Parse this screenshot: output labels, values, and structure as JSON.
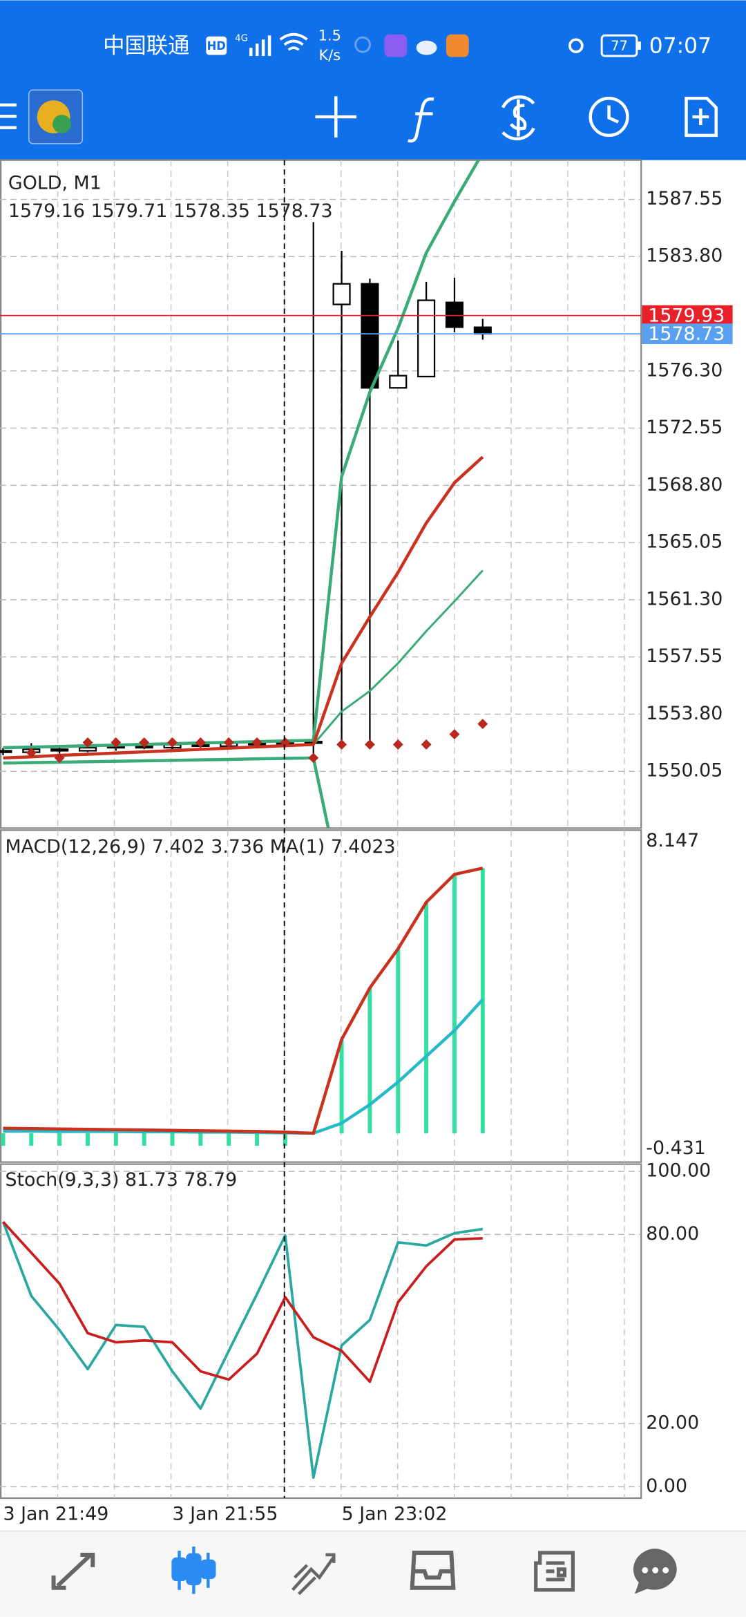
{
  "status_bar": {
    "carrier": "中国联通",
    "hd": "HD",
    "network": "4G",
    "speed": "1.5",
    "speed_unit": "K/s",
    "battery": "77",
    "time": "07:07"
  },
  "chart_data": [
    {
      "type": "candlestick",
      "title": "GOLD, M1",
      "subtitle": "1579.16 1579.71 1578.35 1578.73",
      "categories": [
        "3 Jan 21:49",
        null,
        null,
        null,
        null,
        null,
        "3 Jan 21:55",
        null,
        null,
        null,
        null,
        null,
        "5 Jan 23:02",
        null,
        null,
        null,
        null,
        null
      ],
      "open": [
        1551.4,
        1551.3,
        1551.5,
        1551.4,
        1551.6,
        1551.7,
        1551.6,
        1551.8,
        1551.7,
        1551.9,
        1551.8,
        1551.9,
        1580.66,
        1582.01,
        1575.19,
        1575.93,
        1580.79,
        1579.16
      ],
      "high": [
        1551.6,
        1551.9,
        1551.7,
        1551.8,
        1551.9,
        1552.0,
        1551.9,
        1552.0,
        1552.1,
        1552.1,
        1552.1,
        1586.06,
        1584.17,
        1582.35,
        1578.29,
        1582.14,
        1582.41,
        1579.71
      ],
      "low": [
        1551.1,
        1551.0,
        1551.2,
        1551.3,
        1551.4,
        1551.5,
        1551.4,
        1551.6,
        1551.6,
        1551.7,
        1551.7,
        1550.93,
        1551.94,
        1551.94,
        1575.19,
        1575.93,
        1578.83,
        1578.35
      ],
      "close": [
        1551.3,
        1551.5,
        1551.4,
        1551.6,
        1551.7,
        1551.6,
        1551.8,
        1551.7,
        1551.9,
        1551.8,
        1551.9,
        1552.0,
        1582.01,
        1575.19,
        1575.99,
        1580.93,
        1579.17,
        1578.73
      ],
      "series": [
        {
          "type": "line",
          "color": "#3aaa78",
          "width": 3,
          "values": [
            1551.6,
            1551.64,
            1551.68,
            1551.73,
            1551.77,
            1551.82,
            1551.86,
            1551.91,
            1551.95,
            1552.0,
            1552.04,
            1552.08,
            1569.37,
            1574.91,
            1579.1,
            1584.04,
            1587.41,
            1590.6
          ]
        },
        {
          "type": "line",
          "color": "#3aaa78",
          "width": 3,
          "values": [
            1550.59,
            1550.62,
            1550.65,
            1550.68,
            1550.71,
            1550.74,
            1550.77,
            1550.8,
            1550.83,
            1550.87,
            1550.9,
            1550.93,
            1542.2,
            null,
            null,
            null,
            null,
            null
          ]
        },
        {
          "type": "line",
          "color": "#3aaa78",
          "width": 2,
          "values": [
            null,
            null,
            null,
            null,
            null,
            null,
            null,
            null,
            null,
            null,
            null,
            1551.81,
            1553.97,
            1555.32,
            1557.14,
            1559.24,
            1561.2,
            1563.22
          ]
        },
        {
          "type": "line",
          "color": "#c8321e",
          "width": 3,
          "values": [
            1550.93,
            1551.0,
            1551.1,
            1551.17,
            1551.25,
            1551.33,
            1551.41,
            1551.49,
            1551.57,
            1551.65,
            1551.73,
            1551.81,
            1557.14,
            1560.18,
            1563.09,
            1566.33,
            1568.97,
            1570.66
          ]
        },
        {
          "type": "marker",
          "color": "#b8281e",
          "values": [
            null,
            1551.27,
            1550.93,
            1551.94,
            1551.94,
            1551.94,
            1551.94,
            1551.94,
            1551.94,
            1551.94,
            1551.94,
            1550.93,
            1551.81,
            1551.81,
            1551.81,
            1551.81,
            1552.48,
            1553.16
          ]
        }
      ],
      "price_lines": [
        {
          "value": 1579.93,
          "color": "#e8202a"
        },
        {
          "value": 1578.73,
          "color": "#5aa0f0"
        }
      ],
      "ylim": [
        1546.33,
        1590.12
      ],
      "yticks": [
        1550.05,
        {
          "value": 1553.8,
          "label": "1553.80"
        },
        1557.55,
        {
          "value": 1561.3,
          "label": "1561.30"
        },
        1565.05,
        {
          "value": 1568.8,
          "label": "1568.80"
        },
        1572.55,
        {
          "value": 1576.3,
          "label": "1576.30"
        },
        {
          "value": 1583.8,
          "label": "1583.80"
        },
        1587.55
      ],
      "grid": true
    },
    {
      "type": "macd",
      "title": "MACD(12,26,9) 7.402 3.736 MA(1) 7.4023",
      "series": [
        {
          "type": "bar",
          "color": "#33e0a0",
          "values": [
            -0.35,
            -0.35,
            -0.35,
            -0.35,
            -0.35,
            -0.35,
            -0.35,
            -0.35,
            -0.35,
            -0.35,
            -0.35,
            0.0,
            2.62,
            4.06,
            5.15,
            6.45,
            7.23,
            7.402
          ]
        },
        {
          "type": "line",
          "color": "#26b9c8",
          "width": 3,
          "values": [
            0.06,
            0.06,
            0.05,
            0.05,
            0.05,
            0.04,
            0.04,
            0.03,
            0.03,
            0.02,
            0.01,
            0.0,
            0.28,
            0.8,
            1.43,
            2.15,
            2.87,
            3.736
          ]
        },
        {
          "type": "line",
          "color": "#c8321e",
          "width": 3,
          "values": [
            0.14,
            0.13,
            0.12,
            0.11,
            0.1,
            0.09,
            0.08,
            0.07,
            0.06,
            0.05,
            0.03,
            0.0,
            2.62,
            4.06,
            5.15,
            6.45,
            7.23,
            7.4023
          ]
        }
      ],
      "ylim": [
        -0.805,
        8.464
      ],
      "yticks": [
        8.147,
        -0.431
      ],
      "grid": false
    },
    {
      "type": "line",
      "title": "Stoch(9,3,3) 81.73 78.79",
      "series": [
        {
          "type": "line",
          "color": "#2aa8a0",
          "width": 2.5,
          "values": [
            84.0,
            60.5,
            49.7,
            37.3,
            51.3,
            50.7,
            36.6,
            24.8,
            43.1,
            61.1,
            79.7,
            2.9,
            44.8,
            52.9,
            77.5,
            76.5,
            80.4,
            81.73
          ]
        },
        {
          "type": "line",
          "color": "#c81e1e",
          "width": 2.5,
          "values": [
            84.0,
            74.2,
            64.4,
            48.7,
            45.8,
            46.4,
            45.8,
            36.6,
            34.0,
            42.2,
            60.1,
            47.4,
            43.1,
            33.3,
            58.5,
            69.9,
            78.4,
            78.79
          ]
        }
      ],
      "ylim": [
        -3.6,
        102.3
      ],
      "yticks": [
        {
          "value": 100,
          "label": "100.00"
        },
        {
          "value": 80,
          "label": "80.00"
        },
        {
          "value": 20,
          "label": "20.00"
        },
        {
          "value": 0,
          "label": "0.00"
        }
      ],
      "grid": true
    }
  ]
}
